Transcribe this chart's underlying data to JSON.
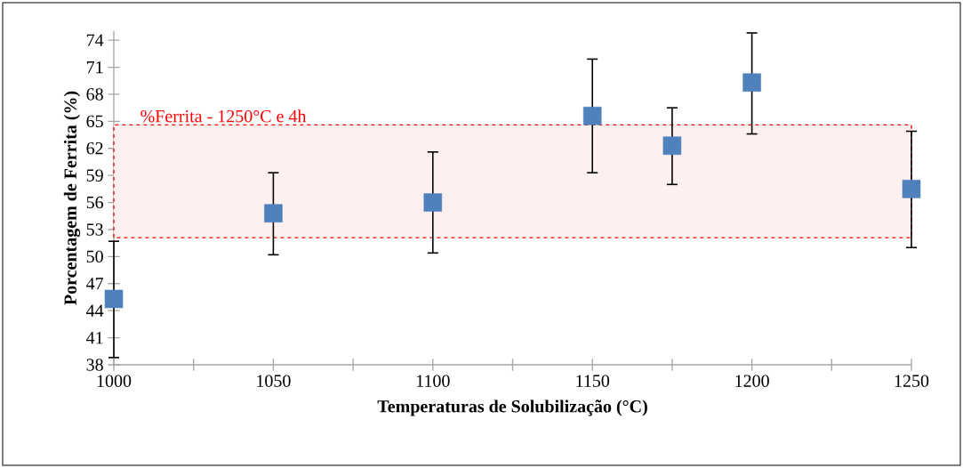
{
  "chart_data": {
    "type": "scatter",
    "xlabel": "Temperaturas de Solubilização (°C)",
    "ylabel": "Porcentagem de Ferrita (%)",
    "x": [
      1000,
      1050,
      1100,
      1150,
      1175,
      1200,
      1250
    ],
    "series": [
      {
        "color": "#4f81bd",
        "values": [
          45.3,
          54.8,
          56.0,
          65.6,
          62.3,
          69.3,
          57.5
        ],
        "errors": [
          [
            38.8,
            51.7
          ],
          [
            50.2,
            59.3
          ],
          [
            50.4,
            61.6
          ],
          [
            59.3,
            71.9
          ],
          [
            58.0,
            66.5
          ],
          [
            63.6,
            74.8
          ],
          [
            51.0,
            63.9
          ]
        ]
      }
    ],
    "marker": "square",
    "grid": false,
    "xlim": [
      1000,
      1250
    ],
    "xticks": [
      1000,
      {
        "value": 1025,
        "label": null
      },
      1050,
      {
        "value": 1075,
        "label": null
      },
      1100,
      {
        "value": 1125,
        "label": null
      },
      1150,
      {
        "value": 1175,
        "label": null
      },
      1200,
      {
        "value": 1225,
        "label": null
      },
      1250
    ],
    "ylim": [
      38,
      75
    ],
    "yticks": [
      38,
      41,
      44,
      47,
      50,
      53,
      56,
      59,
      62,
      65,
      68,
      71,
      74
    ],
    "bands": [
      {
        "axis": "y",
        "from": 52.1,
        "to": 64.6,
        "label": "%Ferrita - 1250°C e 4h",
        "color": "#ff0000"
      }
    ]
  }
}
